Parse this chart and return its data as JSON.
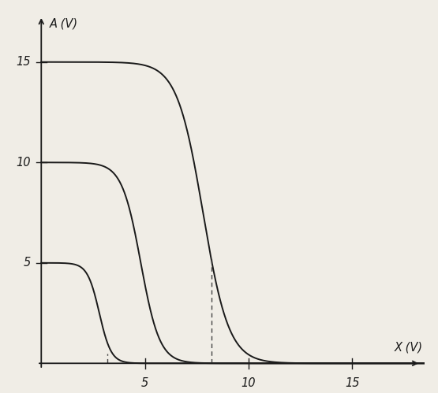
{
  "xlabel": "X (V)",
  "ylabel": "A (V)",
  "xlim": [
    -0.3,
    18.5
  ],
  "ylim": [
    -0.5,
    17.5
  ],
  "xticks": [
    5,
    10,
    15
  ],
  "yticks": [
    5,
    10,
    15
  ],
  "background_color": "#f0ede6",
  "curve_color": "#1a1a1a",
  "dashed_color": "#444444",
  "dashed_x1": 3.2,
  "dashed_x2": 8.2,
  "curves": [
    {
      "vdd": 5.0,
      "mid": 2.8,
      "k": 3.5,
      "x_start": 0.0
    },
    {
      "vdd": 10.0,
      "mid": 4.8,
      "k": 2.2,
      "x_start": 0.0
    },
    {
      "vdd": 15.0,
      "mid": 7.8,
      "k": 1.6,
      "x_start": 0.0
    }
  ]
}
